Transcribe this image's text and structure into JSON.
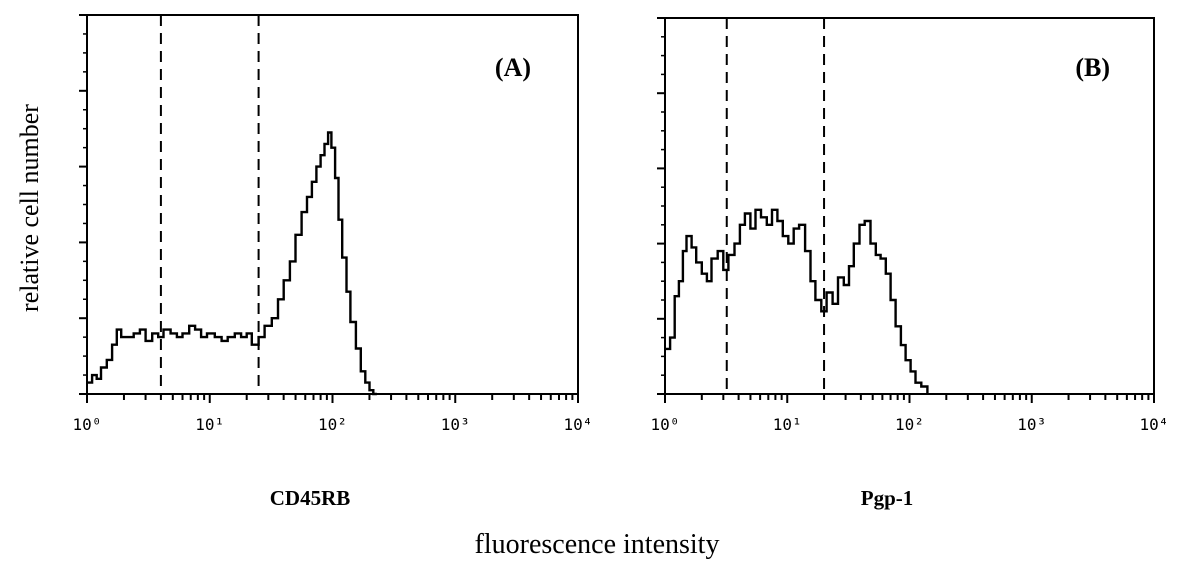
{
  "figure": {
    "ylabel": "relative cell number",
    "xlabel": "fluorescence intensity"
  },
  "chart_data": [
    {
      "type": "line",
      "panel_label": "(A)",
      "marker_label": "CD45RB",
      "x_scale": "log",
      "xlim": [
        1,
        10000
      ],
      "tick_labels": [
        "10⁰",
        "10¹",
        "10²",
        "10³",
        "10⁴"
      ],
      "x": [
        1,
        1.1,
        1.2,
        1.3,
        1.45,
        1.6,
        1.75,
        1.9,
        2.1,
        2.4,
        2.7,
        3.0,
        3.4,
        3.8,
        4.2,
        4.8,
        5.4,
        6.0,
        6.8,
        7.6,
        8.5,
        9.5,
        11,
        12.5,
        14,
        16,
        18,
        20,
        22,
        25,
        28,
        32,
        36,
        40,
        45,
        50,
        56,
        62,
        68,
        74,
        80,
        86,
        92,
        98,
        105,
        112,
        120,
        130,
        140,
        155,
        170,
        185,
        200,
        215,
        230
      ],
      "y": [
        0.03,
        0.05,
        0.04,
        0.07,
        0.09,
        0.13,
        0.17,
        0.15,
        0.15,
        0.16,
        0.17,
        0.14,
        0.16,
        0.15,
        0.17,
        0.16,
        0.15,
        0.16,
        0.18,
        0.17,
        0.15,
        0.16,
        0.15,
        0.14,
        0.15,
        0.16,
        0.15,
        0.16,
        0.13,
        0.15,
        0.18,
        0.2,
        0.25,
        0.3,
        0.35,
        0.42,
        0.48,
        0.52,
        0.56,
        0.6,
        0.63,
        0.66,
        0.69,
        0.65,
        0.57,
        0.46,
        0.36,
        0.27,
        0.19,
        0.12,
        0.06,
        0.03,
        0.01,
        0.0,
        0.0
      ],
      "vlines": [
        4,
        25
      ],
      "ylim": [
        0,
        1
      ]
    },
    {
      "type": "line",
      "panel_label": "(B)",
      "marker_label": "Pgp-1",
      "x_scale": "log",
      "xlim": [
        1,
        10000
      ],
      "tick_labels": [
        "10⁰",
        "10¹",
        "10²",
        "10³",
        "10⁴"
      ],
      "x": [
        1,
        1.1,
        1.2,
        1.3,
        1.4,
        1.5,
        1.65,
        1.8,
        2.0,
        2.2,
        2.4,
        2.7,
        3.0,
        3.3,
        3.7,
        4.1,
        4.5,
        5.0,
        5.5,
        6.1,
        6.8,
        7.5,
        8.3,
        9.2,
        10.2,
        11.3,
        12.5,
        14,
        15.5,
        17,
        19,
        21,
        23.5,
        26,
        29,
        32,
        35,
        39,
        43,
        48,
        53,
        58,
        64,
        70,
        77,
        85,
        93,
        102,
        112,
        125,
        140
      ],
      "y": [
        0.12,
        0.15,
        0.26,
        0.3,
        0.38,
        0.42,
        0.39,
        0.35,
        0.32,
        0.3,
        0.36,
        0.38,
        0.33,
        0.37,
        0.4,
        0.45,
        0.48,
        0.44,
        0.49,
        0.47,
        0.45,
        0.49,
        0.46,
        0.42,
        0.4,
        0.44,
        0.45,
        0.38,
        0.3,
        0.25,
        0.22,
        0.27,
        0.24,
        0.31,
        0.29,
        0.34,
        0.4,
        0.45,
        0.46,
        0.4,
        0.37,
        0.36,
        0.32,
        0.25,
        0.18,
        0.13,
        0.09,
        0.06,
        0.03,
        0.02,
        0.0
      ],
      "vlines": [
        3.2,
        20
      ],
      "ylim": [
        0,
        1
      ]
    }
  ]
}
